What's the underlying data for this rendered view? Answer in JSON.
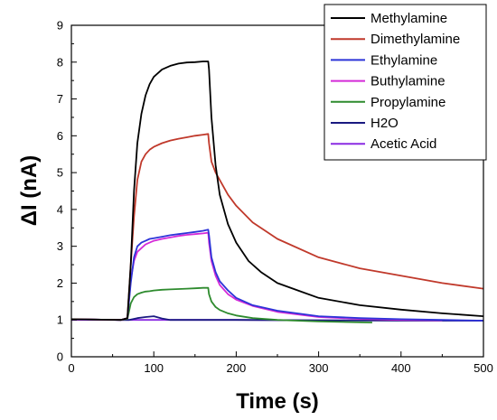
{
  "chart_data": {
    "type": "line",
    "title": "",
    "xlabel": "Time (s)",
    "ylabel": "ΔI (nA)",
    "xlim": [
      0,
      500
    ],
    "ylim": [
      0,
      9
    ],
    "xticks": [
      0,
      100,
      200,
      300,
      400,
      500
    ],
    "yticks": [
      0,
      1,
      2,
      3,
      4,
      5,
      6,
      7,
      8,
      9
    ],
    "grid": false,
    "legend_position": "top-right",
    "series": [
      {
        "name": "Methylamine",
        "color": "#000000",
        "x": [
          0,
          60,
          68,
          72,
          76,
          80,
          85,
          90,
          95,
          100,
          110,
          120,
          130,
          140,
          150,
          160,
          166,
          167,
          170,
          175,
          180,
          190,
          200,
          215,
          230,
          250,
          275,
          300,
          350,
          400,
          450,
          500
        ],
        "y": [
          1.02,
          1.0,
          1.05,
          2.5,
          4.5,
          5.8,
          6.6,
          7.1,
          7.4,
          7.6,
          7.8,
          7.9,
          7.96,
          7.99,
          8.0,
          8.02,
          8.02,
          7.8,
          6.5,
          5.2,
          4.4,
          3.6,
          3.1,
          2.6,
          2.3,
          2.0,
          1.8,
          1.6,
          1.4,
          1.28,
          1.18,
          1.1
        ]
      },
      {
        "name": "Dimethylamine",
        "color": "#c0392b",
        "x": [
          0,
          60,
          68,
          72,
          76,
          80,
          85,
          90,
          95,
          100,
          110,
          120,
          130,
          140,
          150,
          160,
          166,
          167,
          170,
          175,
          180,
          190,
          200,
          220,
          250,
          300,
          350,
          400,
          450,
          500
        ],
        "y": [
          1.02,
          1.0,
          1.05,
          2.5,
          3.8,
          4.8,
          5.3,
          5.5,
          5.62,
          5.7,
          5.8,
          5.87,
          5.92,
          5.96,
          6.0,
          6.03,
          6.05,
          5.8,
          5.3,
          5.0,
          4.8,
          4.4,
          4.1,
          3.65,
          3.2,
          2.7,
          2.4,
          2.2,
          2.0,
          1.85
        ]
      },
      {
        "name": "Ethylamine",
        "color": "#2d34d8",
        "x": [
          0,
          60,
          68,
          72,
          76,
          80,
          85,
          90,
          95,
          100,
          110,
          120,
          130,
          140,
          150,
          160,
          166,
          167,
          170,
          175,
          180,
          190,
          200,
          220,
          250,
          300,
          350,
          400,
          450,
          500
        ],
        "y": [
          1.02,
          1.0,
          1.05,
          2.0,
          2.7,
          3.0,
          3.1,
          3.15,
          3.2,
          3.22,
          3.26,
          3.3,
          3.33,
          3.36,
          3.39,
          3.42,
          3.45,
          3.3,
          2.7,
          2.3,
          2.05,
          1.8,
          1.6,
          1.4,
          1.25,
          1.1,
          1.05,
          1.02,
          1.0,
          0.98
        ]
      },
      {
        "name": "Buthylamine",
        "color": "#d42ad8",
        "x": [
          0,
          60,
          68,
          72,
          76,
          80,
          85,
          90,
          95,
          100,
          110,
          120,
          130,
          140,
          150,
          160,
          166,
          167,
          170,
          175,
          180,
          190,
          200,
          220,
          250,
          300,
          350,
          400,
          450
        ],
        "y": [
          1.02,
          1.0,
          1.05,
          2.1,
          2.6,
          2.85,
          2.95,
          3.05,
          3.1,
          3.15,
          3.2,
          3.24,
          3.28,
          3.31,
          3.33,
          3.35,
          3.37,
          3.1,
          2.6,
          2.2,
          1.95,
          1.7,
          1.55,
          1.38,
          1.22,
          1.08,
          1.03,
          1.0,
          0.99
        ]
      },
      {
        "name": "Propylamine",
        "color": "#2e8b2e",
        "x": [
          0,
          60,
          68,
          72,
          76,
          80,
          85,
          90,
          95,
          100,
          110,
          120,
          130,
          140,
          150,
          160,
          166,
          167,
          170,
          175,
          180,
          190,
          200,
          220,
          250,
          300,
          365
        ],
        "y": [
          1.02,
          1.0,
          1.03,
          1.45,
          1.62,
          1.7,
          1.74,
          1.77,
          1.78,
          1.8,
          1.82,
          1.83,
          1.84,
          1.85,
          1.86,
          1.87,
          1.87,
          1.7,
          1.5,
          1.35,
          1.27,
          1.18,
          1.12,
          1.05,
          1.0,
          0.96,
          0.93
        ]
      },
      {
        "name": "H2O",
        "color": "#1a1a80",
        "x": [
          0,
          60,
          70,
          80,
          90,
          100,
          110,
          120,
          140,
          165,
          200,
          300,
          400,
          500
        ],
        "y": [
          1.02,
          1.0,
          1.0,
          1.05,
          1.08,
          1.1,
          1.04,
          1.0,
          1.0,
          1.0,
          1.0,
          0.99,
          0.98,
          0.98
        ]
      },
      {
        "name": "Acetic Acid",
        "color": "#8a2be2",
        "x": [
          0,
          60,
          70,
          80,
          100,
          150,
          200,
          300,
          400,
          500
        ],
        "y": [
          1.0,
          1.0,
          1.0,
          1.0,
          1.0,
          1.0,
          1.0,
          0.99,
          0.99,
          0.98
        ]
      }
    ]
  }
}
